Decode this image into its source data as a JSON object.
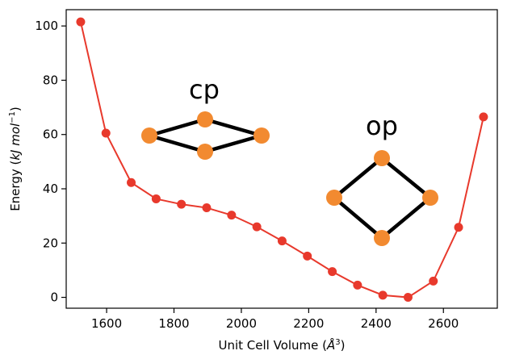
{
  "chart_data": {
    "type": "line",
    "xlabel_main": "Unit Cell Volume (",
    "xlabel_unit": "Å",
    "xlabel_exp": "3",
    "xlabel_close": ")",
    "ylabel_main": "Energy (",
    "ylabel_unit": "kJ mol",
    "ylabel_exp": "−1",
    "ylabel_close": ")",
    "xlim": [
      1480,
      2760
    ],
    "ylim": [
      -4,
      106
    ],
    "xticks": [
      1600,
      1800,
      2000,
      2200,
      2400,
      2600
    ],
    "yticks": [
      0,
      20,
      40,
      60,
      80,
      100
    ],
    "grid": false,
    "line_color": "#e8392c",
    "series": [
      {
        "x": [
          1523,
          1598,
          1673,
          1747,
          1822,
          1897,
          1971,
          2046,
          2121,
          2196,
          2270,
          2345,
          2420,
          2495,
          2570,
          2645,
          2719
        ],
        "y": [
          101.5,
          60.5,
          42.3,
          36.3,
          34.3,
          33.0,
          30.3,
          26.0,
          20.8,
          15.2,
          9.5,
          4.5,
          0.8,
          0.0,
          6.0,
          25.8,
          66.5
        ]
      }
    ],
    "insets": [
      {
        "label": "cp",
        "shape": "compressed-rhombus"
      },
      {
        "label": "op",
        "shape": "open-square"
      }
    ],
    "node_color": "#f28a30",
    "edge_color": "#000000"
  }
}
